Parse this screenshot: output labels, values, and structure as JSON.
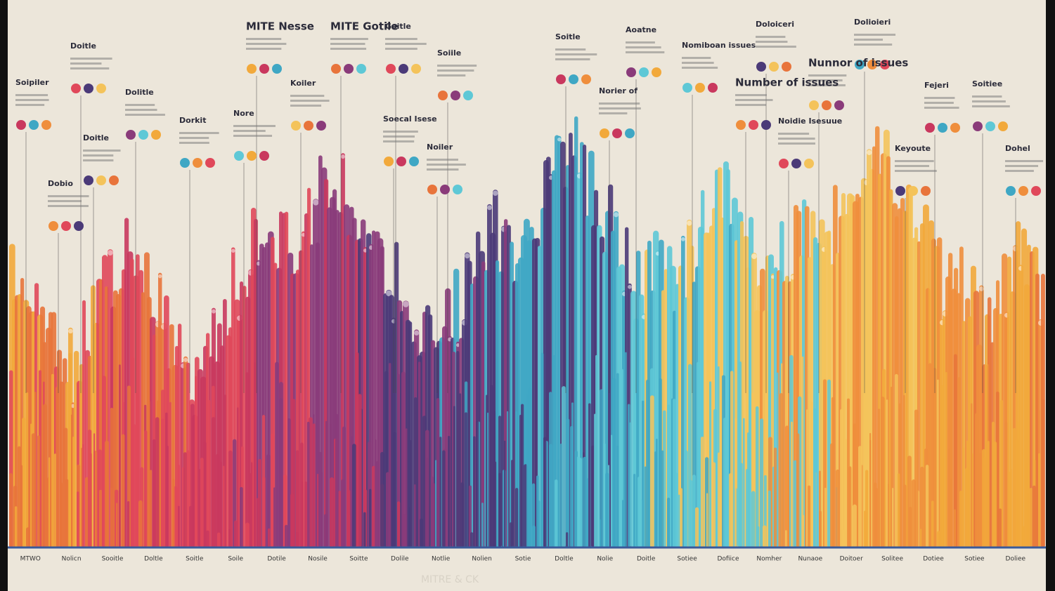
{
  "labels": [
    "MITE Nesse",
    "MITE Gotile",
    "Goitle",
    "Soitle",
    "Aoatne",
    "Doloiceri",
    "Dolioieri",
    "Nomiboan issues",
    "Nunnor of issues",
    "Number of issues",
    "Norier of",
    "Soiile",
    "Doitle",
    "Soipiler",
    "Dolitle",
    "Doitle",
    "Dorkit",
    "Nore",
    "Koiler",
    "Dobio",
    "Soecal Isese",
    "Noiler",
    "Noidie Isesuue",
    "Fejeri",
    "Soitiee",
    "Keyoute",
    "Dohel"
  ],
  "axis_labels": [
    "MTWO",
    "Nolicn",
    "Sooitle",
    "Doltle",
    "Soitle",
    "Soile",
    "Dotile",
    "Nosile",
    "Soitte",
    "Dolile",
    "Notlie",
    "Nolien",
    "Sotie",
    "Doltle",
    "Nolie",
    "Doitle",
    "Sotiee",
    "Dofiice",
    "Nomher",
    "Nunaoe",
    "Doitoer",
    "Solitee",
    "Dotiee",
    "Sotiee",
    "Doliee"
  ],
  "footer": "MITRE & CK"
}
